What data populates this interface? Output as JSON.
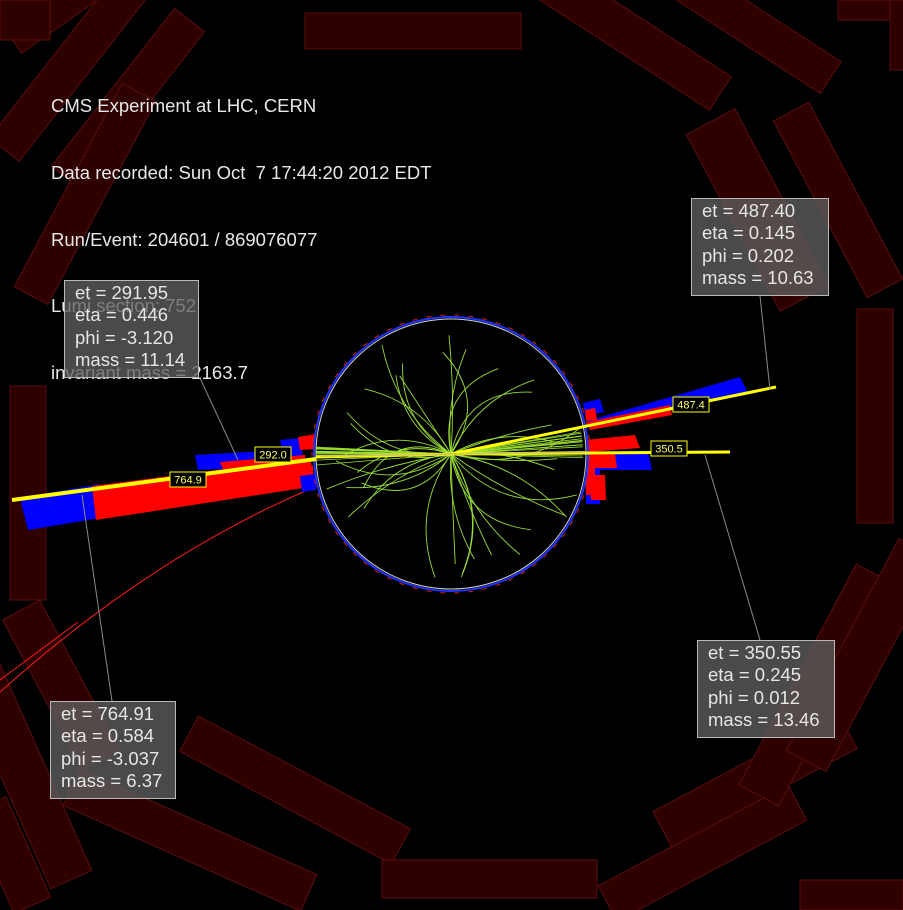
{
  "header": {
    "line1": "CMS Experiment at LHC, CERN",
    "line2": "Data recorded: Sun Oct  7 17:44:20 2012 EDT",
    "line3": "Run/Event: 204601 / 869076077",
    "line4": "Lumi section: 752",
    "line5": "invariant mass = 2163.7"
  },
  "jets": [
    {
      "et": "et = 291.95",
      "eta": "eta = 0.446",
      "phi": "phi = -3.120",
      "mass": "mass = 11.14",
      "tag": "292.0"
    },
    {
      "et": "et = 487.40",
      "eta": "eta = 0.145",
      "phi": "phi = 0.202",
      "mass": "mass = 10.63",
      "tag": "487.4"
    },
    {
      "et": "et = 350.55",
      "eta": "eta = 0.245",
      "phi": "phi = 0.012",
      "mass": "mass = 13.46",
      "tag": "350.5"
    },
    {
      "et": "et = 764.91",
      "eta": "eta = 0.584",
      "phi": "phi = -3.037",
      "mass": "mass = 6.37",
      "tag": "764.9"
    }
  ],
  "colors": {
    "background": "#000000",
    "muon_chamber": "#2e0000",
    "muon_chamber_border": "#5a0d0d",
    "ecal": "#ff0000",
    "hcal": "#0000ff",
    "jet_line": "#ffff00",
    "tracks": "#99dd33",
    "muon_track": "#ff1a1a",
    "tracker_outline": "#d0d0d0"
  }
}
